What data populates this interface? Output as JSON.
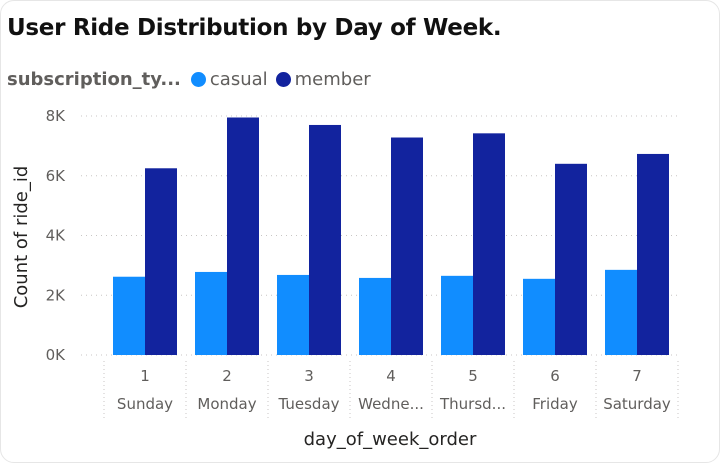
{
  "chart_data": {
    "type": "bar",
    "title": "User Ride Distribution by Day of Week.",
    "legend": {
      "title": "subscription_ty...",
      "placement": "top-left",
      "entries": [
        "casual",
        "member"
      ]
    },
    "xlabel": "day_of_week_order",
    "ylabel": "Count of ride_id",
    "categories": [
      "1",
      "2",
      "3",
      "4",
      "5",
      "6",
      "7"
    ],
    "subcategories": [
      "Sunday",
      "Monday",
      "Tuesday",
      "Wedne...",
      "Thursd...",
      "Friday",
      "Saturday"
    ],
    "series": [
      {
        "name": "casual",
        "color": "#118dff",
        "values": [
          2620,
          2780,
          2680,
          2580,
          2650,
          2550,
          2850
        ]
      },
      {
        "name": "member",
        "color": "#12239e",
        "values": [
          6250,
          7950,
          7700,
          7280,
          7420,
          6400,
          6730
        ]
      }
    ],
    "ylim": [
      0,
      8000
    ],
    "yticks": [
      {
        "value": 0,
        "label": "0K"
      },
      {
        "value": 2000,
        "label": "2K"
      },
      {
        "value": 4000,
        "label": "4K"
      },
      {
        "value": 6000,
        "label": "6K"
      },
      {
        "value": 8000,
        "label": "8K"
      }
    ],
    "grid": true
  }
}
